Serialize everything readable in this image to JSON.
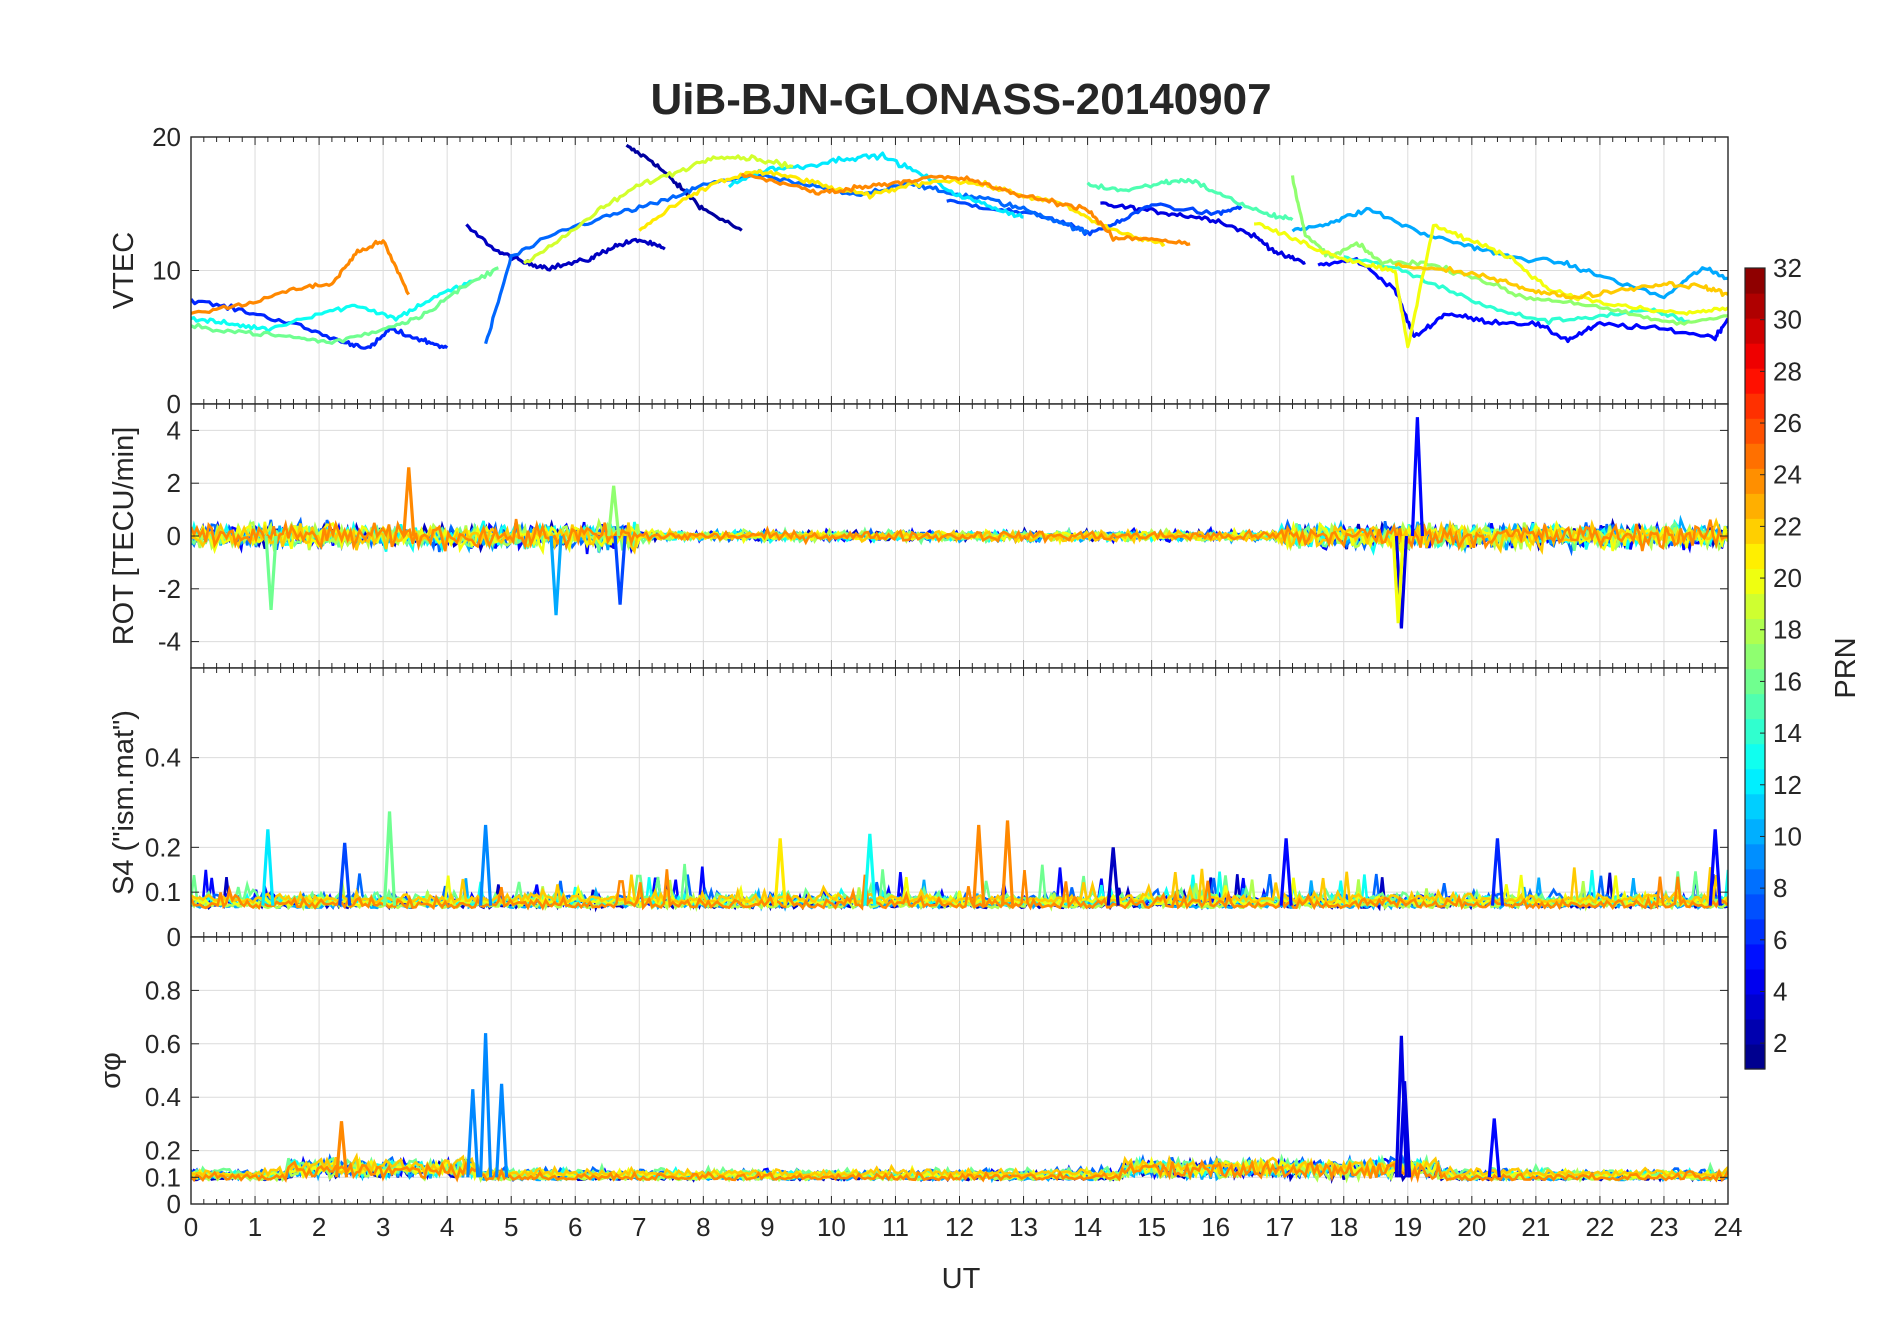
{
  "chart_data": {
    "type": "line",
    "title": "UiB-BJN-GLONASS-20140907",
    "xlabel": "UT",
    "x_ticks": [
      "0",
      "1",
      "2",
      "3",
      "4",
      "5",
      "6",
      "7",
      "8",
      "9",
      "10",
      "11",
      "12",
      "13",
      "14",
      "15",
      "16",
      "17",
      "18",
      "19",
      "20",
      "21",
      "22",
      "23",
      "24"
    ],
    "xlim": [
      0,
      24
    ],
    "grid": true,
    "colorbar": {
      "label": "PRN",
      "colormap": "jet",
      "range": [
        1,
        32
      ],
      "ticks": [
        "2",
        "4",
        "6",
        "8",
        "10",
        "12",
        "14",
        "16",
        "18",
        "20",
        "22",
        "24",
        "26",
        "28",
        "30",
        "32"
      ]
    },
    "panels": [
      {
        "ylabel": "VTEC",
        "ylim": [
          0,
          20
        ],
        "y_ticks": [
          "0",
          "10",
          "20"
        ],
        "series": [
          {
            "prn": 2,
            "x": [
              6.8,
              7.2,
              7.6,
              8.0,
              8.6
            ],
            "y": [
              19.3,
              18.2,
              16.4,
              14.6,
              13.0
            ]
          },
          {
            "prn": 3,
            "x": [
              4.3,
              4.8,
              5.2,
              5.6,
              6.2,
              6.6,
              7.0,
              7.4
            ],
            "y": [
              13.3,
              11.4,
              10.6,
              10.2,
              10.8,
              11.8,
              12.3,
              11.6
            ]
          },
          {
            "prn": 4,
            "x": [
              14.2,
              14.8,
              15.4,
              16.0,
              16.6,
              17.0,
              17.4
            ],
            "y": [
              15.0,
              14.6,
              14.2,
              13.8,
              12.6,
              11.2,
              10.6
            ]
          },
          {
            "prn": 5,
            "x": [
              17.6,
              18.2,
              18.8,
              19.1,
              19.6,
              20.2,
              21.0,
              21.5,
              22.0,
              23.0,
              23.8,
              24.0
            ],
            "y": [
              10.4,
              10.8,
              8.6,
              5.0,
              6.8,
              6.2,
              6.0,
              4.8,
              6.0,
              5.6,
              5.0,
              6.4
            ]
          },
          {
            "prn": 6,
            "x": [
              0.0,
              0.8,
              1.6,
              2.4,
              2.8,
              3.1,
              3.6,
              4.0
            ],
            "y": [
              7.8,
              7.0,
              6.0,
              4.6,
              4.2,
              5.6,
              4.8,
              4.2
            ]
          },
          {
            "prn": 7,
            "x": [
              11.8,
              12.6,
              13.4,
              14.0,
              14.5,
              15.0,
              16.0,
              16.4
            ],
            "y": [
              15.2,
              14.6,
              14.0,
              12.8,
              13.6,
              15.0,
              14.2,
              14.8
            ]
          },
          {
            "prn": 8,
            "x": [
              4.6,
              5.0,
              5.8,
              6.6,
              7.4,
              8.0,
              8.8,
              9.6,
              10.4,
              11.2,
              11.8,
              12.4,
              13.0,
              13.6,
              14.0
            ],
            "y": [
              4.4,
              11.0,
              13.0,
              14.2,
              15.2,
              16.4,
              17.2,
              16.4,
              15.6,
              16.6,
              15.8,
              15.4,
              14.6,
              13.6,
              12.8
            ]
          },
          {
            "prn": 10,
            "x": [
              17.2,
              17.8,
              18.4,
              19.2,
              20.0,
              20.6,
              21.4,
              22.0,
              23.0,
              23.6,
              24.0
            ],
            "y": [
              13.0,
              13.6,
              14.6,
              12.8,
              11.8,
              11.0,
              10.6,
              9.6,
              8.0,
              10.2,
              9.4
            ]
          },
          {
            "prn": 12,
            "x": [
              8.4,
              9.0,
              9.6,
              10.2,
              10.8,
              11.4,
              12.0,
              12.6,
              13.0
            ],
            "y": [
              16.4,
              17.6,
              17.8,
              18.4,
              18.6,
              17.2,
              15.6,
              14.6,
              14.0
            ]
          },
          {
            "prn": 13,
            "x": [
              0.0,
              0.6,
              1.2,
              2.0,
              2.6,
              3.2,
              3.8,
              4.4
            ],
            "y": [
              6.4,
              6.0,
              5.6,
              6.8,
              7.4,
              6.4,
              8.0,
              9.2
            ]
          },
          {
            "prn": 14,
            "x": [
              18.0,
              18.8,
              19.6,
              20.4,
              21.2,
              22.0,
              22.8,
              23.4
            ],
            "y": [
              11.0,
              10.2,
              8.6,
              7.0,
              6.2,
              6.6,
              7.0,
              6.2
            ]
          },
          {
            "prn": 15,
            "x": [
              14.0,
              14.6,
              15.2,
              15.6,
              16.2,
              16.8,
              17.2
            ],
            "y": [
              16.4,
              16.0,
              16.6,
              16.8,
              15.4,
              14.2,
              13.8
            ]
          },
          {
            "prn": 16,
            "x": [
              0.0,
              0.8,
              1.6,
              2.2,
              3.0,
              3.6,
              4.2,
              4.8
            ],
            "y": [
              5.8,
              5.4,
              5.0,
              4.6,
              5.6,
              6.6,
              8.6,
              10.2
            ]
          },
          {
            "prn": 17,
            "x": [
              17.2,
              17.4,
              17.8,
              18.2,
              18.6,
              19.2,
              20.0,
              20.8,
              21.6,
              22.4,
              23.2,
              24.0
            ],
            "y": [
              17.0,
              12.6,
              11.0,
              12.0,
              10.6,
              10.6,
              9.6,
              8.0,
              7.6,
              6.8,
              6.0,
              6.6
            ]
          },
          {
            "prn": 19,
            "x": [
              5.2,
              5.8,
              6.4,
              7.0,
              7.6,
              8.2,
              8.8,
              9.4
            ],
            "y": [
              10.6,
              12.4,
              14.6,
              16.4,
              17.4,
              18.6,
              18.4,
              17.8
            ]
          },
          {
            "prn": 20,
            "x": [
              16.6,
              17.2,
              17.8,
              18.4,
              18.8,
              19.0,
              19.4,
              20.0,
              20.6,
              21.2,
              22.0,
              22.8,
              23.4,
              24.0
            ],
            "y": [
              13.6,
              12.4,
              11.2,
              10.4,
              10.0,
              4.2,
              13.4,
              12.2,
              11.0,
              8.6,
              7.6,
              7.0,
              6.8,
              7.2
            ]
          },
          {
            "prn": 21,
            "x": [
              7.0,
              7.6,
              8.2,
              8.8,
              9.4,
              10.0,
              10.6,
              11.2,
              11.8,
              12.4,
              13.0,
              13.6,
              14.2,
              14.8,
              15.2
            ],
            "y": [
              13.0,
              15.0,
              16.6,
              17.4,
              17.0,
              16.2,
              15.6,
              16.4,
              16.8,
              16.4,
              15.6,
              15.0,
              13.4,
              12.4,
              12.0
            ]
          },
          {
            "prn": 22,
            "x": [
              18.8,
              19.6,
              20.4,
              21.0,
              21.6,
              22.4,
              23.0,
              23.6,
              24.0
            ],
            "y": [
              10.4,
              10.0,
              9.4,
              8.4,
              8.0,
              8.6,
              9.0,
              8.8,
              8.2
            ]
          },
          {
            "prn": 24,
            "x": [
              0.0,
              0.8,
              1.6,
              2.2,
              2.6,
              3.0,
              3.4
            ],
            "y": [
              6.8,
              7.4,
              8.6,
              9.0,
              11.4,
              12.2,
              8.2
            ]
          },
          {
            "prn": 24,
            "x": [
              8.6,
              9.2,
              9.8,
              10.4,
              11.0,
              11.6,
              12.2,
              12.8,
              13.4,
              14.0,
              14.4,
              15.0,
              15.6
            ],
            "y": [
              17.2,
              16.6,
              15.8,
              16.2,
              16.6,
              17.0,
              16.8,
              15.8,
              15.2,
              14.6,
              12.4,
              12.4,
              12.0
            ]
          }
        ]
      },
      {
        "ylabel": "ROT [TECU/min]",
        "ylim": [
          -5,
          5
        ],
        "y_ticks": [
          "-4",
          "-2",
          "0",
          "2",
          "4"
        ],
        "spikes": [
          {
            "prn": 5,
            "x": 19.15,
            "y": 4.5
          },
          {
            "prn": 4,
            "x": 18.9,
            "y": -3.5
          },
          {
            "prn": 20,
            "x": 18.85,
            "y": -3.3
          },
          {
            "prn": 16,
            "x": 1.25,
            "y": -2.8
          },
          {
            "prn": 10,
            "x": 5.7,
            "y": -3.0
          },
          {
            "prn": 7,
            "x": 6.7,
            "y": -2.6
          },
          {
            "prn": 24,
            "x": 3.4,
            "y": 2.6
          },
          {
            "prn": 17,
            "x": 6.6,
            "y": 1.9
          }
        ]
      },
      {
        "ylabel": "S4 (\"ism.mat\")",
        "ylim": [
          0,
          0.6
        ],
        "y_ticks": [
          "0",
          "0.1",
          "0.2",
          "0.4"
        ],
        "spikes": [
          {
            "prn": 16,
            "x": 3.1,
            "y": 0.28
          },
          {
            "prn": 9,
            "x": 4.6,
            "y": 0.25
          },
          {
            "prn": 12,
            "x": 1.2,
            "y": 0.24
          },
          {
            "prn": 7,
            "x": 2.4,
            "y": 0.21
          },
          {
            "prn": 24,
            "x": 12.3,
            "y": 0.25
          },
          {
            "prn": 24,
            "x": 12.75,
            "y": 0.26
          },
          {
            "prn": 21,
            "x": 9.2,
            "y": 0.22
          },
          {
            "prn": 13,
            "x": 10.6,
            "y": 0.23
          },
          {
            "prn": 3,
            "x": 14.4,
            "y": 0.2
          },
          {
            "prn": 5,
            "x": 17.1,
            "y": 0.22
          },
          {
            "prn": 6,
            "x": 20.4,
            "y": 0.22
          },
          {
            "prn": 5,
            "x": 23.8,
            "y": 0.24
          }
        ]
      },
      {
        "ylabel": "σφ",
        "ylim": [
          0,
          1
        ],
        "y_ticks": [
          "0",
          "0.1",
          "0.2",
          "0.4",
          "0.6",
          "0.8"
        ],
        "spikes": [
          {
            "prn": 9,
            "x": 4.6,
            "y": 0.64
          },
          {
            "prn": 9,
            "x": 4.4,
            "y": 0.43
          },
          {
            "prn": 9,
            "x": 4.85,
            "y": 0.45
          },
          {
            "prn": 4,
            "x": 18.9,
            "y": 0.63
          },
          {
            "prn": 4,
            "x": 18.95,
            "y": 0.46
          },
          {
            "prn": 5,
            "x": 20.35,
            "y": 0.32
          },
          {
            "prn": 24,
            "x": 2.35,
            "y": 0.31
          }
        ]
      }
    ]
  }
}
